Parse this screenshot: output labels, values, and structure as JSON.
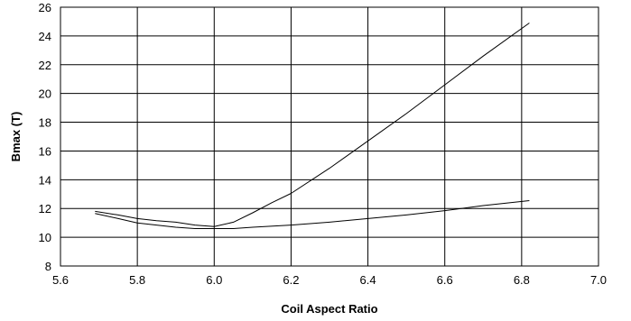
{
  "chart_data": {
    "type": "line",
    "xlabel": "Coil Aspect Ratio",
    "ylabel": "Bmax (T)",
    "xlim": [
      5.6,
      7.0
    ],
    "ylim": [
      8,
      26
    ],
    "x_ticks": [
      "5.6",
      "5.8",
      "6.0",
      "6.2",
      "6.4",
      "6.6",
      "6.8",
      "7.0"
    ],
    "y_ticks": [
      "8",
      "10",
      "12",
      "14",
      "16",
      "18",
      "20",
      "22",
      "24",
      "26"
    ],
    "grid": true,
    "legend": false,
    "line_color": "#000000",
    "series": [
      {
        "points": [
          [
            5.69,
            11.8
          ],
          [
            5.75,
            11.55
          ],
          [
            5.8,
            11.3
          ],
          [
            5.85,
            11.15
          ],
          [
            5.9,
            11.05
          ],
          [
            5.95,
            10.85
          ],
          [
            6.0,
            10.75
          ],
          [
            6.05,
            11.05
          ],
          [
            6.1,
            11.7
          ],
          [
            6.15,
            12.4
          ],
          [
            6.2,
            13.05
          ],
          [
            6.3,
            14.8
          ],
          [
            6.4,
            16.7
          ],
          [
            6.5,
            18.6
          ],
          [
            6.6,
            20.6
          ],
          [
            6.7,
            22.6
          ],
          [
            6.82,
            24.9
          ]
        ]
      },
      {
        "points": [
          [
            5.69,
            11.65
          ],
          [
            5.75,
            11.3
          ],
          [
            5.8,
            11.0
          ],
          [
            5.9,
            10.7
          ],
          [
            5.95,
            10.6
          ],
          [
            6.0,
            10.6
          ],
          [
            6.05,
            10.6
          ],
          [
            6.1,
            10.7
          ],
          [
            6.2,
            10.85
          ],
          [
            6.3,
            11.05
          ],
          [
            6.4,
            11.3
          ],
          [
            6.5,
            11.55
          ],
          [
            6.6,
            11.85
          ],
          [
            6.7,
            12.2
          ],
          [
            6.82,
            12.55
          ]
        ]
      }
    ]
  }
}
